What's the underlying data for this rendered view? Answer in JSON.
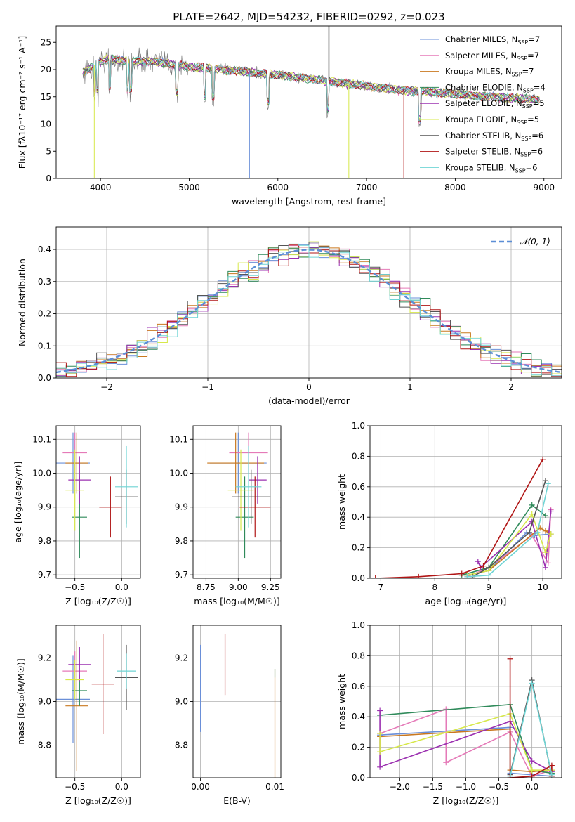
{
  "colors": {
    "Chabrier MILES": "#6a8fd8",
    "Salpeter MILES": "#e57ab8",
    "Kroupa MILES": "#c9781f",
    "Chabrier ELODIE": "#2f8a5a",
    "Salpeter ELODIE": "#9b30b0",
    "Kroupa ELODIE": "#d7e84a",
    "Chabrier STELIB": "#555555",
    "Salpeter STELIB": "#b01515",
    "Kroupa STELIB": "#6fd4d4",
    "normal_curve": "#5b8ed6",
    "orange": "#e07a1e"
  },
  "title": "PLATE=2642, MJD=54232, FIBERID=0292, z=0.023",
  "chart_data": [
    {
      "id": "spectrum",
      "type": "line",
      "xlabel": "wavelength [Angstrom, rest frame]",
      "ylabel": "Flux [f",
      "ylabel_full": "Flux [fλ10⁻¹⁷ erg cm⁻² s⁻¹ A⁻¹]",
      "xlim": [
        3500,
        9200
      ],
      "ylim": [
        0,
        28
      ],
      "xticks": [
        4000,
        5000,
        6000,
        7000,
        8000,
        9000
      ],
      "yticks": [
        0,
        5,
        10,
        15,
        20,
        25
      ],
      "legend": [
        {
          "name": "Chabrier MILES",
          "nssp": "7"
        },
        {
          "name": "Salpeter MILES",
          "nssp": "7"
        },
        {
          "name": "Kroupa MILES",
          "nssp": "7"
        },
        {
          "name": "Chabrier ELODIE",
          "nssp": "4"
        },
        {
          "name": "Salpeter ELODIE",
          "nssp": "5"
        },
        {
          "name": "Kroupa ELODIE",
          "nssp": "5"
        },
        {
          "name": "Chabrier STELIB",
          "nssp": "6"
        },
        {
          "name": "Salpeter STELIB",
          "nssp": "6"
        },
        {
          "name": "Kroupa STELIB",
          "nssp": "6"
        }
      ],
      "continuum": [
        [
          3800,
          19.5
        ],
        [
          3950,
          21
        ],
        [
          4100,
          22
        ],
        [
          4300,
          21.5
        ],
        [
          4600,
          21.5
        ],
        [
          5000,
          20.5
        ],
        [
          5500,
          19.8
        ],
        [
          6000,
          19
        ],
        [
          6500,
          18
        ],
        [
          7000,
          17
        ],
        [
          7400,
          16.2
        ],
        [
          7800,
          15.8
        ],
        [
          8200,
          15.2
        ],
        [
          8600,
          14.8
        ],
        [
          8950,
          14.5
        ]
      ],
      "drops": [
        {
          "x": 5680,
          "to": 0,
          "model": "Chabrier MILES"
        },
        {
          "x": 6800,
          "to": 0,
          "model": "Kroupa ELODIE"
        },
        {
          "x": 7420,
          "to": 0,
          "model": "Salpeter STELIB"
        },
        {
          "x": 3930,
          "to": 0,
          "model": "Kroupa ELODIE"
        }
      ]
    },
    {
      "id": "residuals",
      "type": "step",
      "xlabel": "(data-model)/error",
      "ylabel": "Normed distribution",
      "xlim": [
        -2.5,
        2.5
      ],
      "ylim": [
        0,
        0.47
      ],
      "xticks": [
        -2,
        -1,
        0,
        1,
        2
      ],
      "yticks": [
        0.0,
        0.1,
        0.2,
        0.3,
        0.4
      ],
      "legend": "N(0,1)",
      "legend_label": "𝒩(0, 1)",
      "bin_width": 0.1
    },
    {
      "id": "age_vs_Z",
      "type": "errorbar",
      "xlabel": "Z [log₁₀(Z/Z☉)]",
      "ylabel": "age  [log₁₀(age/yr)]",
      "xlim": [
        -0.7,
        0.2
      ],
      "ylim": [
        9.69,
        10.14
      ],
      "xticks": [
        -0.5,
        0.0
      ],
      "yticks": [
        9.7,
        9.8,
        9.9,
        10.0,
        10.1
      ],
      "points": [
        {
          "model": "Chabrier MILES",
          "x": -0.52,
          "xerr": 0.18,
          "y": 10.03,
          "yerr": 0.09
        },
        {
          "model": "Salpeter MILES",
          "x": -0.5,
          "xerr": 0.13,
          "y": 10.06,
          "yerr": 0.06
        },
        {
          "model": "Kroupa MILES",
          "x": -0.48,
          "xerr": 0.12,
          "y": 10.03,
          "yerr": 0.09
        },
        {
          "model": "Chabrier ELODIE",
          "x": -0.45,
          "xerr": 0.08,
          "y": 9.87,
          "yerr": 0.12
        },
        {
          "model": "Salpeter ELODIE",
          "x": -0.45,
          "xerr": 0.12,
          "y": 9.98,
          "yerr": 0.07
        },
        {
          "model": "Kroupa ELODIE",
          "x": -0.5,
          "xerr": 0.1,
          "y": 9.95,
          "yerr": 0.12
        },
        {
          "model": "Chabrier STELIB",
          "x": 0.05,
          "xerr": 0.12,
          "y": 9.93,
          "yerr": 0.08
        },
        {
          "model": "Salpeter STELIB",
          "x": -0.12,
          "xerr": 0.12,
          "y": 9.9,
          "yerr": 0.09
        },
        {
          "model": "Kroupa STELIB",
          "x": 0.05,
          "xerr": 0.12,
          "y": 9.96,
          "yerr": 0.12
        }
      ]
    },
    {
      "id": "age_vs_mass",
      "type": "errorbar",
      "xlabel": "mass [log₁₀(M/M☉)]",
      "ylabel": "",
      "xlim": [
        8.65,
        9.33
      ],
      "ylim": [
        9.69,
        10.14
      ],
      "xticks": [
        8.75,
        9.0,
        9.25
      ],
      "yticks": [
        9.7,
        9.8,
        9.9,
        10.0,
        10.1
      ],
      "points": [
        {
          "model": "Chabrier MILES",
          "x": 9.0,
          "xerr": 0.22,
          "y": 10.03,
          "yerr": 0.09
        },
        {
          "model": "Salpeter MILES",
          "x": 9.08,
          "xerr": 0.15,
          "y": 10.06,
          "yerr": 0.06
        },
        {
          "model": "Kroupa MILES",
          "x": 8.98,
          "xerr": 0.22,
          "y": 10.03,
          "yerr": 0.09
        },
        {
          "model": "Chabrier ELODIE",
          "x": 9.05,
          "xerr": 0.07,
          "y": 9.87,
          "yerr": 0.12
        },
        {
          "model": "Salpeter ELODIE",
          "x": 9.15,
          "xerr": 0.07,
          "y": 9.98,
          "yerr": 0.07
        },
        {
          "model": "Kroupa ELODIE",
          "x": 9.02,
          "xerr": 0.1,
          "y": 9.95,
          "yerr": 0.12
        },
        {
          "model": "Chabrier STELIB",
          "x": 9.1,
          "xerr": 0.15,
          "y": 9.93,
          "yerr": 0.08
        },
        {
          "model": "Salpeter STELIB",
          "x": 9.13,
          "xerr": 0.12,
          "y": 9.9,
          "yerr": 0.09
        },
        {
          "model": "Kroupa STELIB",
          "x": 9.08,
          "xerr": 0.1,
          "y": 9.96,
          "yerr": 0.12
        }
      ]
    },
    {
      "id": "weight_vs_age",
      "type": "line",
      "xlabel": "age  [log₁₀(age/yr)]",
      "ylabel": "mass weight",
      "xlim": [
        6.8,
        10.35
      ],
      "ylim": [
        0,
        1.0
      ],
      "xticks": [
        7,
        8,
        9,
        10
      ],
      "yticks": [
        0.0,
        0.2,
        0.4,
        0.6,
        0.8,
        1.0
      ],
      "series": [
        {
          "name": "Chabrier MILES",
          "x": [
            8.6,
            9.0,
            9.7,
            9.85,
            10.15
          ],
          "y": [
            0.02,
            0.05,
            0.3,
            0.28,
            0.29
          ]
        },
        {
          "name": "Salpeter MILES",
          "x": [
            8.6,
            9.0,
            9.8,
            10.1,
            10.15
          ],
          "y": [
            0.01,
            0.07,
            0.28,
            0.1,
            0.45
          ]
        },
        {
          "name": "Kroupa MILES",
          "x": [
            8.6,
            9.0,
            9.95,
            10.05,
            10.15
          ],
          "y": [
            0.02,
            0.05,
            0.33,
            0.31,
            0.29
          ]
        },
        {
          "name": "Chabrier ELODIE",
          "x": [
            8.5,
            9.0,
            9.8,
            10.05
          ],
          "y": [
            0.02,
            0.07,
            0.48,
            0.41
          ]
        },
        {
          "name": "Salpeter ELODIE",
          "x": [
            8.8,
            8.85,
            9.8,
            10.05,
            10.15
          ],
          "y": [
            0.11,
            0.07,
            0.37,
            0.07,
            0.44
          ]
        },
        {
          "name": "Kroupa ELODIE",
          "x": [
            8.6,
            9.0,
            9.8,
            10.05,
            10.15
          ],
          "y": [
            0.02,
            0.05,
            0.42,
            0.17,
            0.29
          ]
        },
        {
          "name": "Chabrier STELIB",
          "x": [
            8.7,
            9.0,
            9.75,
            10.05
          ],
          "y": [
            0.01,
            0.07,
            0.3,
            0.64
          ]
        },
        {
          "name": "Salpeter STELIB",
          "x": [
            6.9,
            7.7,
            8.5,
            8.9,
            10.0
          ],
          "y": [
            0.0,
            0.01,
            0.03,
            0.08,
            0.78
          ]
        },
        {
          "name": "Kroupa STELIB",
          "x": [
            8.6,
            9.0,
            9.9,
            10.1
          ],
          "y": [
            0.01,
            0.02,
            0.3,
            0.62
          ]
        }
      ]
    },
    {
      "id": "mass_vs_Z",
      "type": "errorbar",
      "xlabel": "Z [log₁₀(Z/Z☉)]",
      "ylabel": "mass [log₁₀(M/M☉)]",
      "xlim": [
        -0.7,
        0.2
      ],
      "ylim": [
        8.65,
        9.35
      ],
      "xticks": [
        -0.5,
        0.0
      ],
      "yticks": [
        8.8,
        9.0,
        9.2
      ],
      "points": [
        {
          "model": "Chabrier MILES",
          "x": -0.52,
          "xerr": 0.18,
          "y": 9.01,
          "yerr": 0.2
        },
        {
          "model": "Salpeter MILES",
          "x": -0.5,
          "xerr": 0.13,
          "y": 9.14,
          "yerr": 0.09
        },
        {
          "model": "Kroupa MILES",
          "x": -0.48,
          "xerr": 0.12,
          "y": 8.98,
          "yerr": 0.3
        },
        {
          "model": "Chabrier ELODIE",
          "x": -0.45,
          "xerr": 0.08,
          "y": 9.05,
          "yerr": 0.07
        },
        {
          "model": "Salpeter ELODIE",
          "x": -0.45,
          "xerr": 0.12,
          "y": 9.17,
          "yerr": 0.08
        },
        {
          "model": "Kroupa ELODIE",
          "x": -0.5,
          "xerr": 0.1,
          "y": 9.1,
          "yerr": 0.09
        },
        {
          "model": "Chabrier STELIB",
          "x": 0.05,
          "xerr": 0.12,
          "y": 9.11,
          "yerr": 0.15
        },
        {
          "model": "Salpeter STELIB",
          "x": -0.2,
          "xerr": 0.12,
          "y": 9.08,
          "yerr": 0.23
        },
        {
          "model": "Kroupa STELIB",
          "x": 0.05,
          "xerr": 0.1,
          "y": 9.14,
          "yerr": 0.08
        }
      ]
    },
    {
      "id": "mass_vs_ebv",
      "type": "errorbar",
      "xlabel": "E(B-V)",
      "ylabel": "",
      "xlim": [
        -0.001,
        0.0108
      ],
      "ylim": [
        8.65,
        9.35
      ],
      "xticks": [
        0.0,
        0.01
      ],
      "xticklabels": [
        "0.00",
        "0.01"
      ],
      "yticks": [
        8.8,
        9.0,
        9.2
      ],
      "points": [
        {
          "model": "Chabrier MILES",
          "x": 0.0,
          "y": 9.06,
          "yerr": 0.2
        },
        {
          "model": "Salpeter STELIB",
          "x": 0.0033,
          "y": 9.17,
          "yerr": 0.14
        },
        {
          "model": "Kroupa MILES",
          "x": 0.01,
          "y": 8.9,
          "yerr": 0.25
        },
        {
          "model": "Kroupa STELIB",
          "x": 0.01,
          "y": 9.13,
          "yerr": 0.02
        }
      ]
    },
    {
      "id": "weight_vs_Z",
      "type": "line",
      "xlabel": "Z [log₁₀(Z/Z☉)]",
      "ylabel": "mass weight",
      "xlim": [
        -2.45,
        0.45
      ],
      "ylim": [
        0,
        1.0
      ],
      "xticks": [
        -2.0,
        -1.5,
        -1.0,
        -0.5,
        0.0
      ],
      "yticks": [
        0.0,
        0.2,
        0.4,
        0.6,
        0.8,
        1.0
      ],
      "series": [
        {
          "name": "Chabrier MILES",
          "x": [
            -2.3,
            -0.33,
            -0.33,
            0.0,
            0.3
          ],
          "y": [
            0.28,
            0.33,
            0.03,
            0.02,
            0.01
          ]
        },
        {
          "name": "Salpeter MILES",
          "x": [
            -2.3,
            -1.3,
            -1.3,
            -0.33,
            0.0,
            0.3
          ],
          "y": [
            0.29,
            0.45,
            0.1,
            0.3,
            0.01,
            0.05
          ]
        },
        {
          "name": "Kroupa MILES",
          "x": [
            -2.3,
            -0.33,
            -0.33,
            0.0,
            0.3
          ],
          "y": [
            0.27,
            0.32,
            0.05,
            0.04,
            0.05
          ]
        },
        {
          "name": "Chabrier ELODIE",
          "x": [
            -2.3,
            -0.33,
            0.0,
            0.3
          ],
          "y": [
            0.41,
            0.48,
            0.05,
            0.03
          ]
        },
        {
          "name": "Salpeter ELODIE",
          "x": [
            -2.3,
            -2.3,
            -0.33,
            0.0,
            0.3
          ],
          "y": [
            0.44,
            0.07,
            0.37,
            0.11,
            0.04
          ]
        },
        {
          "name": "Kroupa ELODIE",
          "x": [
            -2.3,
            -2.3,
            -0.33,
            0.0,
            0.3
          ],
          "y": [
            0.29,
            0.17,
            0.42,
            0.05,
            0.05
          ]
        },
        {
          "name": "Chabrier STELIB",
          "x": [
            -0.33,
            0.0,
            0.3
          ],
          "y": [
            0.02,
            0.64,
            0.01
          ]
        },
        {
          "name": "Salpeter STELIB",
          "x": [
            -0.33,
            -0.33,
            0.0,
            0.3,
            0.3
          ],
          "y": [
            0.78,
            0.0,
            0.01,
            0.08,
            0.01
          ]
        },
        {
          "name": "Kroupa STELIB",
          "x": [
            -0.33,
            0.0,
            0.3
          ],
          "y": [
            0.01,
            0.62,
            0.02
          ]
        }
      ]
    }
  ]
}
